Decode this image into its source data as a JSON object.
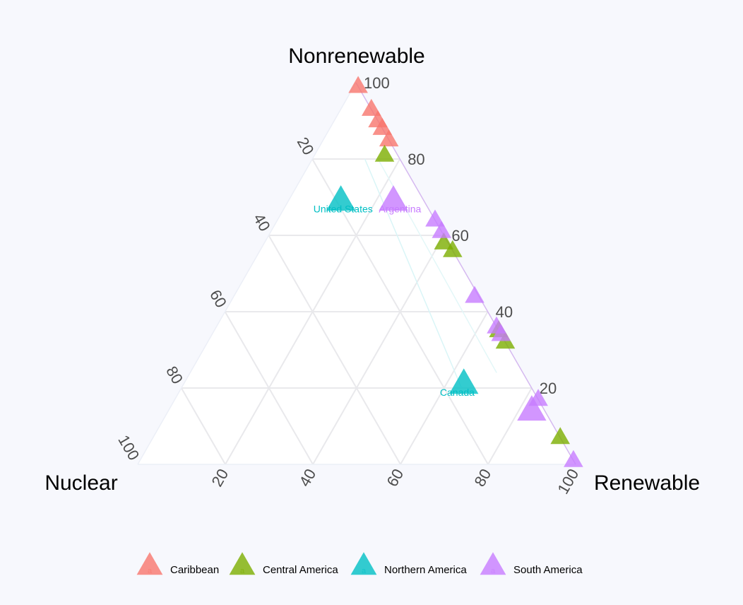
{
  "chart_data": {
    "type": "scatter",
    "subtype": "ternary",
    "axes": {
      "top": "Nonrenewable",
      "left": "Nuclear",
      "right": "Renewable"
    },
    "ticks": [
      "20",
      "40",
      "60",
      "80",
      "100"
    ],
    "top_ticks": [
      "20",
      "40",
      "60",
      "80",
      "100"
    ],
    "grid": true,
    "legend_position": "bottom",
    "groups": [
      {
        "name": "Caribbean",
        "color": "#f8766d"
      },
      {
        "name": "Central America",
        "color": "#7cae00"
      },
      {
        "name": "Northern America",
        "color": "#00bfc4"
      },
      {
        "name": "South America",
        "color": "#c77cff"
      }
    ],
    "points": [
      {
        "group": "Caribbean",
        "nonrenewable": 99,
        "renewable": 1,
        "nuclear": 0
      },
      {
        "group": "Caribbean",
        "nonrenewable": 93,
        "renewable": 7,
        "nuclear": 0
      },
      {
        "group": "Caribbean",
        "nonrenewable": 90,
        "renewable": 10,
        "nuclear": 0
      },
      {
        "group": "Caribbean",
        "nonrenewable": 88,
        "renewable": 12,
        "nuclear": 0
      },
      {
        "group": "Caribbean",
        "nonrenewable": 85,
        "renewable": 15,
        "nuclear": 0
      },
      {
        "group": "Central America",
        "nonrenewable": 81,
        "renewable": 16,
        "nuclear": 3
      },
      {
        "group": "Central America",
        "nonrenewable": 58,
        "renewable": 41,
        "nuclear": 1
      },
      {
        "group": "Central America",
        "nonrenewable": 56,
        "renewable": 44,
        "nuclear": 0
      },
      {
        "group": "Central America",
        "nonrenewable": 35,
        "renewable": 65,
        "nuclear": 0
      },
      {
        "group": "Central America",
        "nonrenewable": 32,
        "renewable": 68,
        "nuclear": 0
      },
      {
        "group": "Central America",
        "nonrenewable": 7,
        "renewable": 93,
        "nuclear": 0
      },
      {
        "group": "Northern America",
        "nonrenewable": 69,
        "renewable": 12,
        "nuclear": 19
      },
      {
        "group": "Northern America",
        "nonrenewable": 21,
        "renewable": 64,
        "nuclear": 15
      },
      {
        "group": "South America",
        "nonrenewable": 69,
        "renewable": 24,
        "nuclear": 7
      },
      {
        "group": "South America",
        "nonrenewable": 64,
        "renewable": 36,
        "nuclear": 0
      },
      {
        "group": "South America",
        "nonrenewable": 61,
        "renewable": 39,
        "nuclear": 0
      },
      {
        "group": "South America",
        "nonrenewable": 44,
        "renewable": 55,
        "nuclear": 1
      },
      {
        "group": "South America",
        "nonrenewable": 36,
        "renewable": 64,
        "nuclear": 0
      },
      {
        "group": "South America",
        "nonrenewable": 34,
        "renewable": 66,
        "nuclear": 0
      },
      {
        "group": "South America",
        "nonrenewable": 17,
        "renewable": 83,
        "nuclear": 0
      },
      {
        "group": "South America",
        "nonrenewable": 14,
        "renewable": 83,
        "nuclear": 3
      },
      {
        "group": "South America",
        "nonrenewable": 1,
        "renewable": 99,
        "nuclear": 0
      }
    ],
    "point_labels": [
      {
        "text": "United States",
        "group": "Northern America",
        "nonrenewable": 66,
        "renewable": 14,
        "nuclear": 20
      },
      {
        "text": "Argentina",
        "group": "South America",
        "nonrenewable": 66,
        "renewable": 27,
        "nuclear": 7
      },
      {
        "text": "Canada",
        "group": "Northern America",
        "nonrenewable": 18,
        "renewable": 64,
        "nuclear": 18
      }
    ]
  }
}
